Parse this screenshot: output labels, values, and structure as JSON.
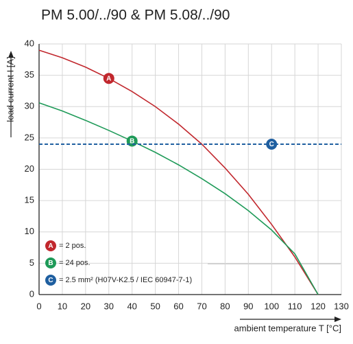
{
  "chart_data": {
    "type": "line",
    "title": "PM 5.00/../90 & PM 5.08/../90",
    "x_label": "ambient temperature T [°C]",
    "y_label": "load current I [A]",
    "x": [
      0,
      10,
      20,
      30,
      40,
      50,
      60,
      70,
      80,
      90,
      100,
      110,
      120,
      130
    ],
    "series": [
      {
        "name": "= 2 pos.",
        "marker": "A",
        "color": "#c1272d",
        "values": [
          39,
          37.8,
          36.3,
          34.5,
          32.4,
          30,
          27.2,
          24,
          20.2,
          16,
          11.2,
          6,
          0,
          null
        ]
      },
      {
        "name": "= 24 pos.",
        "marker": "B",
        "color": "#1e9a58",
        "values": [
          30.6,
          29.3,
          27.8,
          26.2,
          24.5,
          22.7,
          20.7,
          18.5,
          16.1,
          13.4,
          10.3,
          6.5,
          0,
          null
        ]
      },
      {
        "name": "= 2.5 mm² (H07V-K2.5 / IEC 60947-7-1)",
        "marker": "C",
        "color": "#1f5fa0",
        "dashed": true,
        "values": [
          24,
          24,
          24,
          24,
          24,
          24,
          24,
          24,
          24,
          24,
          24,
          24,
          24,
          24
        ]
      }
    ],
    "xlim": [
      0,
      130
    ],
    "xticks": [
      0,
      10,
      20,
      30,
      40,
      50,
      60,
      70,
      80,
      90,
      100,
      110,
      120,
      130
    ],
    "ylim": [
      0,
      40
    ],
    "yticks": [
      0,
      5,
      10,
      15,
      20,
      25,
      30,
      35,
      40
    ],
    "grid": true
  }
}
